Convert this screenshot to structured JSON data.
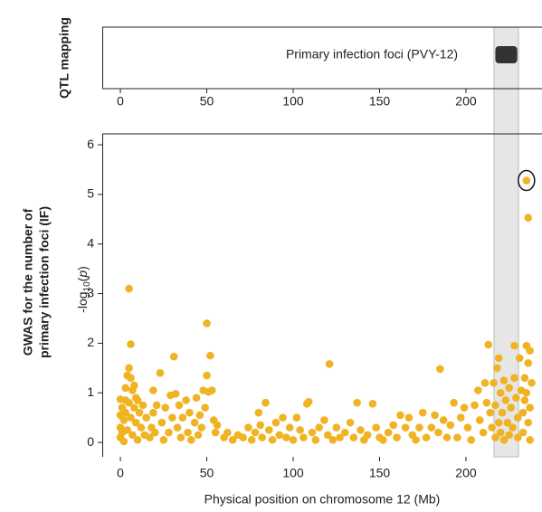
{
  "chart_data": {
    "type": "scatter",
    "panel_label": "QTL mapping",
    "y_title_lines": [
      "GWAS for the number of",
      "primary infection foci (IF)"
    ],
    "ylabel_parts": [
      "-log",
      "10",
      "(",
      "p",
      ")"
    ],
    "xlabel": "Physical position on chromosome 12 (Mb)",
    "qtl": {
      "label": "Primary infection foci (PVY-12)",
      "range": [
        217,
        229.7
      ],
      "color": "#333333"
    },
    "highlight_region": [
      216.2,
      230.4
    ],
    "xlim": [
      -10.5,
      244
    ],
    "xticks": [
      0,
      50,
      100,
      150,
      200
    ],
    "ylim": [
      -0.29,
      6.22
    ],
    "yticks": [
      0,
      1,
      2,
      3,
      4,
      5,
      6
    ],
    "color": "#f0b323",
    "x": [
      0,
      0,
      0,
      0,
      1,
      1,
      2,
      2,
      3,
      3,
      3,
      4,
      4,
      5,
      5,
      5,
      6,
      6,
      6,
      7,
      7,
      8,
      8,
      9,
      9,
      10,
      10,
      11,
      12,
      13,
      14,
      15,
      17,
      18,
      19,
      19,
      20,
      21,
      23,
      24,
      25,
      26,
      28,
      29,
      30,
      31,
      32,
      33,
      34,
      35,
      36,
      38,
      39,
      40,
      41,
      43,
      44,
      45,
      46,
      47,
      48,
      49,
      50,
      50,
      51,
      52,
      53,
      54,
      55,
      56,
      60,
      62,
      65,
      68,
      71,
      74,
      76,
      78,
      80,
      81,
      82,
      84,
      86,
      88,
      90,
      92,
      94,
      96,
      98,
      100,
      102,
      104,
      106,
      108,
      109,
      111,
      113,
      115,
      118,
      120,
      121,
      123,
      125,
      127,
      130,
      133,
      135,
      137,
      139,
      141,
      143,
      146,
      148,
      150,
      152,
      155,
      158,
      160,
      162,
      165,
      167,
      169,
      171,
      173,
      175,
      177,
      180,
      182,
      184,
      185,
      187,
      189,
      191,
      193,
      195,
      197,
      199,
      201,
      203,
      205,
      207,
      208,
      210,
      211,
      212,
      213,
      214,
      215,
      216,
      217,
      217,
      218,
      219,
      219,
      220,
      220,
      221,
      222,
      222,
      223,
      224,
      225,
      225,
      226,
      227,
      228,
      228,
      229,
      230,
      230,
      231,
      232,
      233,
      233,
      234,
      234,
      235,
      235,
      235,
      236,
      236,
      236,
      237,
      237,
      237,
      238
    ],
    "values": [
      0.87,
      0.55,
      0.3,
      0.1,
      0.7,
      0.2,
      0.45,
      0.02,
      0.85,
      0.6,
      1.1,
      1.35,
      0.25,
      1.5,
      3.1,
      0.8,
      1.98,
      1.3,
      0.5,
      1.05,
      0.15,
      0.7,
      1.15,
      0.4,
      0.9,
      0.05,
      0.85,
      0.6,
      0.3,
      0.75,
      0.15,
      0.5,
      0.1,
      0.3,
      0.6,
      1.05,
      0.2,
      0.75,
      1.4,
      0.4,
      0.05,
      0.7,
      0.2,
      0.95,
      0.5,
      1.73,
      0.98,
      0.3,
      0.75,
      0.1,
      0.5,
      0.85,
      0.2,
      0.6,
      0.05,
      0.4,
      0.9,
      0.15,
      0.55,
      0.3,
      1.05,
      0.7,
      2.4,
      1.35,
      1.02,
      1.75,
      1.05,
      0.45,
      0.2,
      0.35,
      0.1,
      0.2,
      0.05,
      0.15,
      0.1,
      0.3,
      0.05,
      0.2,
      0.6,
      0.35,
      0.1,
      0.8,
      0.25,
      0.05,
      0.4,
      0.15,
      0.5,
      0.1,
      0.3,
      0.05,
      0.5,
      0.25,
      0.1,
      0.78,
      0.82,
      0.2,
      0.05,
      0.3,
      0.45,
      0.15,
      1.58,
      0.05,
      0.3,
      0.1,
      0.2,
      0.4,
      0.1,
      0.8,
      0.25,
      0.05,
      0.15,
      0.78,
      0.3,
      0.1,
      0.05,
      0.2,
      0.35,
      0.1,
      0.55,
      0.3,
      0.5,
      0.15,
      0.05,
      0.3,
      0.6,
      0.1,
      0.3,
      0.55,
      0.2,
      1.48,
      0.45,
      0.1,
      0.35,
      0.8,
      0.1,
      0.5,
      0.7,
      0.3,
      0.05,
      0.75,
      1.05,
      0.45,
      0.2,
      1.2,
      0.8,
      1.97,
      0.6,
      0.3,
      1.2,
      0.75,
      0.1,
      1.5,
      1.7,
      0.4,
      1.0,
      0.2,
      0.6,
      1.25,
      0.05,
      0.85,
      0.4,
      1.1,
      0.15,
      0.7,
      0.3,
      1.95,
      1.3,
      0.9,
      0.5,
      0.1,
      1.7,
      1.05,
      0.6,
      0.2,
      1.3,
      0.85,
      5.28,
      1.95,
      1.0,
      4.53,
      1.6,
      0.4,
      1.85,
      0.7,
      0.05,
      1.2
    ]
  }
}
